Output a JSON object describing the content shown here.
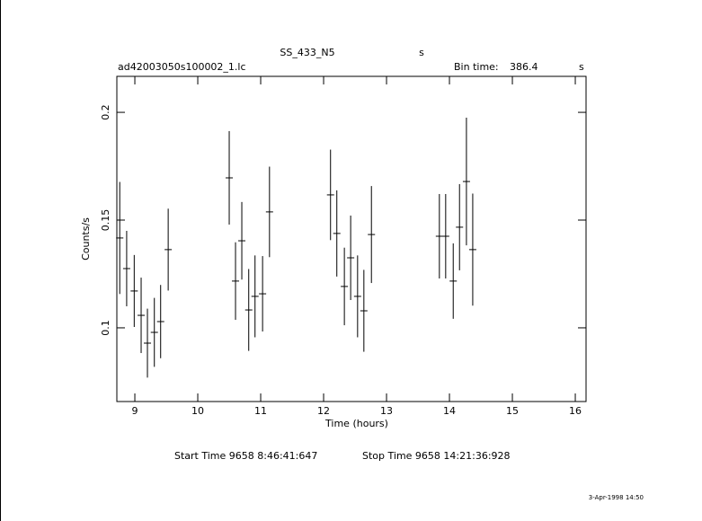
{
  "chart_data": {
    "type": "errorbar",
    "title": "SS_433_N5",
    "title_suffix": "s",
    "file_name": "ad42003050s100002_1.lc",
    "bin_time_label": "Bin time:",
    "bin_time": "386.4",
    "bin_time_unit": "s",
    "x_label": "Time (hours)",
    "y_label": "Counts/s",
    "start_time": "Start Time  9658  8:46:41:647",
    "stop_time": "Stop Time  9658 14:21:36:928",
    "date": "3-Apr-1998 14:50",
    "color": "#000000",
    "x": [
      8.76,
      8.87,
      8.99,
      9.1,
      9.2,
      9.31,
      9.41,
      9.53,
      10.5,
      10.6,
      10.7,
      10.81,
      10.91,
      11.03,
      11.14,
      12.11,
      12.21,
      12.33,
      12.43,
      12.54,
      12.64,
      12.76,
      13.84,
      13.94,
      14.06,
      14.16,
      14.27,
      14.37
    ],
    "values": [
      0.1417,
      0.1275,
      0.1171,
      0.1058,
      0.0929,
      0.0979,
      0.1029,
      0.1363,
      0.1696,
      0.1217,
      0.1404,
      0.1083,
      0.1146,
      0.1158,
      0.1538,
      0.1617,
      0.1438,
      0.1192,
      0.1325,
      0.1146,
      0.1079,
      0.1433,
      0.1425,
      0.1425,
      0.1217,
      0.1467,
      0.1679,
      0.1363
    ],
    "errors": [
      0.026,
      0.0175,
      0.0167,
      0.0175,
      0.016,
      0.016,
      0.017,
      0.019,
      0.0217,
      0.018,
      0.018,
      0.019,
      0.019,
      0.0175,
      0.021,
      0.021,
      0.02,
      0.018,
      0.0196,
      0.019,
      0.019,
      0.0225,
      0.0196,
      0.0196,
      0.0175,
      0.02,
      0.0296,
      0.026
    ],
    "xlim": [
      8.714,
      16.171
    ],
    "ylim": [
      0.0658,
      0.2167
    ],
    "xticks": [
      9,
      10,
      11,
      12,
      13,
      14,
      15,
      16
    ],
    "yticks": [
      0.1,
      0.15,
      0.2
    ]
  }
}
